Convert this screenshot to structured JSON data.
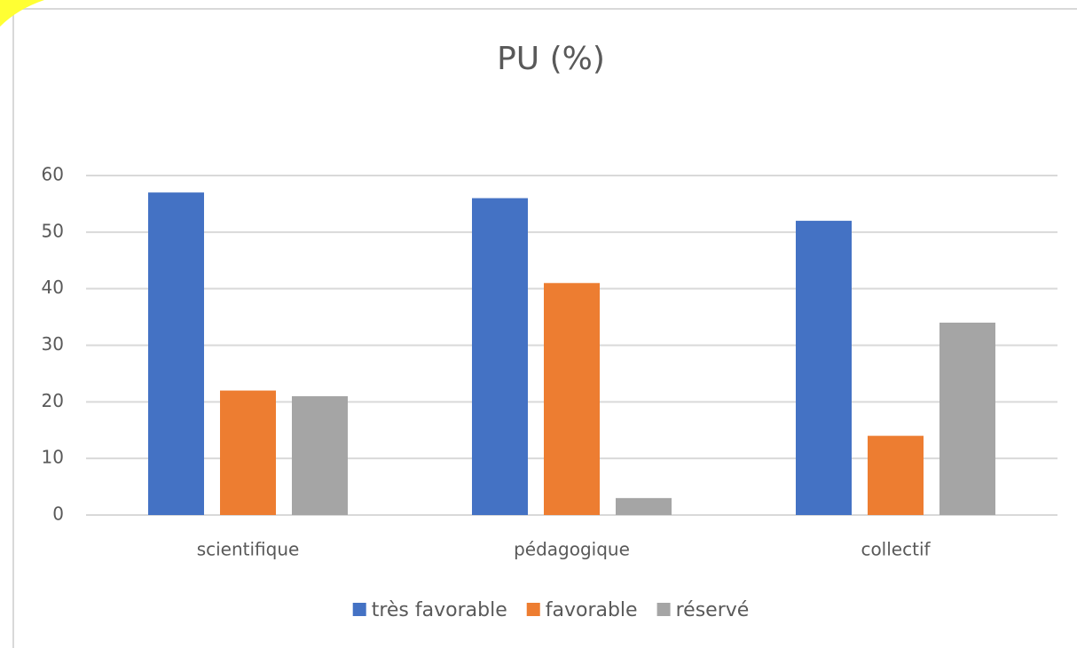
{
  "chart_data": {
    "type": "bar",
    "title": "PU (%)",
    "categories": [
      "scientifique",
      "pédagogique",
      "collectif"
    ],
    "series": [
      {
        "name": "très favorable",
        "color": "#4472c4",
        "values": [
          57,
          56,
          52
        ]
      },
      {
        "name": "favorable",
        "color": "#ed7d31",
        "values": [
          22,
          41,
          14
        ]
      },
      {
        "name": "réservé",
        "color": "#a5a5a5",
        "values": [
          21,
          3,
          34
        ]
      }
    ],
    "ylim": [
      0,
      60
    ],
    "yticks": [
      0,
      10,
      20,
      30,
      40,
      50,
      60
    ],
    "grid": true,
    "legend": "bottom"
  }
}
